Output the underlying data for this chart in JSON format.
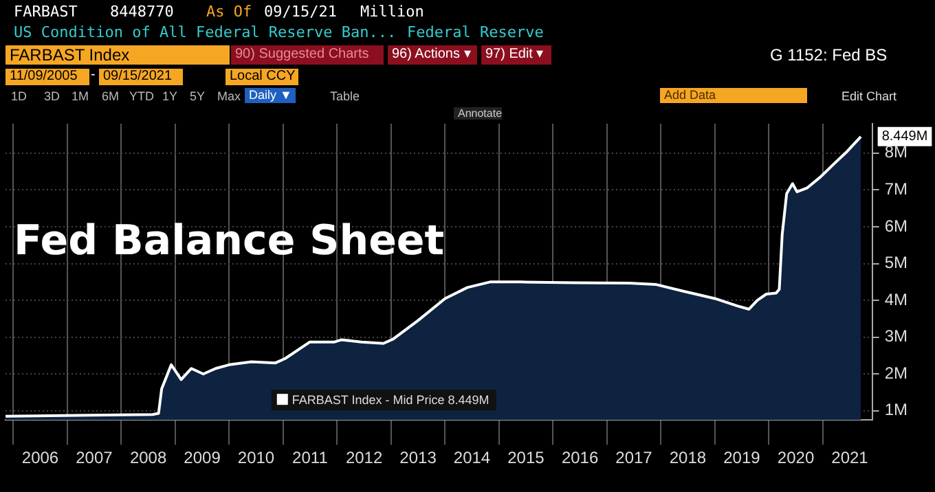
{
  "chart_data": {
    "type": "area",
    "title": "Fed Balance Sheet",
    "annotations": [
      "FARBAST",
      "8448770",
      "As Of",
      "09/15/21",
      "Million",
      "US Condition of All Federal Reserve Ban...",
      "Federal Reserve",
      "FARBAST Index",
      "90) Suggested Charts",
      "96) Actions ▾",
      "97) Edit ▾",
      "G 1152: Fed BS",
      "11/09/2005",
      "-",
      "09/15/2021",
      "Local CCY",
      "1D",
      "3D",
      "1M",
      "6M",
      "YTD",
      "1Y",
      "5Y",
      "Max",
      "Daily ▼",
      "Table",
      "Add Data",
      "Edit Chart",
      "Annotate"
    ],
    "x": [
      "2005-11-09",
      "2006-06-01",
      "2007-06-01",
      "2008-08-01",
      "2008-09-10",
      "2008-10-01",
      "2008-12-05",
      "2009-02-10",
      "2009-04-20",
      "2009-07-10",
      "2009-10-01",
      "2010-01-01",
      "2010-06-01",
      "2010-11-10",
      "2011-01-15",
      "2011-07-01",
      "2011-12-15",
      "2012-02-01",
      "2012-06-15",
      "2012-11-10",
      "2013-01-15",
      "2013-07-01",
      "2014-01-01",
      "2014-06-01",
      "2014-11-01",
      "2015-06-01",
      "2016-06-01",
      "2017-06-01",
      "2017-12-01",
      "2018-06-01",
      "2019-01-01",
      "2019-06-01",
      "2019-08-20",
      "2019-10-15",
      "2019-12-15",
      "2020-02-20",
      "2020-03-12",
      "2020-04-01",
      "2020-05-01",
      "2020-06-10",
      "2020-07-10",
      "2020-09-15",
      "2020-12-15",
      "2021-03-15",
      "2021-06-15",
      "2021-09-15"
    ],
    "series": [
      {
        "name": "FARBAST Index - Mid Price 8.449M",
        "color": "#ffffff",
        "values": [
          0.85,
          0.86,
          0.88,
          0.9,
          0.93,
          1.6,
          2.25,
          1.85,
          2.15,
          2.0,
          2.15,
          2.25,
          2.33,
          2.3,
          2.42,
          2.87,
          2.87,
          2.93,
          2.87,
          2.83,
          2.95,
          3.45,
          4.05,
          4.35,
          4.5,
          4.5,
          4.48,
          4.47,
          4.43,
          4.25,
          4.05,
          3.85,
          3.76,
          4.0,
          4.17,
          4.2,
          4.3,
          5.8,
          6.9,
          7.17,
          6.95,
          7.05,
          7.35,
          7.7,
          8.05,
          8.449
        ],
        "value_labels": [
          null,
          null,
          null,
          null,
          null,
          null,
          null,
          null,
          null,
          null,
          null,
          null,
          null,
          null,
          null,
          null,
          null,
          null,
          null,
          null,
          null,
          null,
          null,
          null,
          null,
          null,
          null,
          null,
          null,
          null,
          null,
          null,
          null,
          null,
          null,
          null,
          null,
          null,
          null,
          null,
          null,
          null,
          null,
          null,
          null,
          "8.449M"
        ]
      }
    ],
    "xlim": [
      "2005-11-09",
      "2021-12-01"
    ],
    "xticks": [
      {
        "value": "2006-01-01",
        "label": null
      },
      {
        "value": "2006-07-02",
        "label": "2006"
      },
      {
        "value": "2007-01-01",
        "label": null
      },
      {
        "value": "2007-07-02",
        "label": "2007"
      },
      {
        "value": "2008-01-01",
        "label": null
      },
      {
        "value": "2008-07-02",
        "label": "2008"
      },
      {
        "value": "2009-01-01",
        "label": null
      },
      {
        "value": "2009-07-02",
        "label": "2009"
      },
      {
        "value": "2010-01-01",
        "label": null
      },
      {
        "value": "2010-07-02",
        "label": "2010"
      },
      {
        "value": "2011-01-01",
        "label": null
      },
      {
        "value": "2011-07-02",
        "label": "2011"
      },
      {
        "value": "2012-01-01",
        "label": null
      },
      {
        "value": "2012-07-02",
        "label": "2012"
      },
      {
        "value": "2013-01-01",
        "label": null
      },
      {
        "value": "2013-07-02",
        "label": "2013"
      },
      {
        "value": "2014-01-01",
        "label": null
      },
      {
        "value": "2014-07-02",
        "label": "2014"
      },
      {
        "value": "2015-01-01",
        "label": null
      },
      {
        "value": "2015-07-02",
        "label": "2015"
      },
      {
        "value": "2016-01-01",
        "label": null
      },
      {
        "value": "2016-07-02",
        "label": "2016"
      },
      {
        "value": "2017-01-01",
        "label": null
      },
      {
        "value": "2017-07-02",
        "label": "2017"
      },
      {
        "value": "2018-01-01",
        "label": null
      },
      {
        "value": "2018-07-02",
        "label": "2018"
      },
      {
        "value": "2019-01-01",
        "label": null
      },
      {
        "value": "2019-07-02",
        "label": "2019"
      },
      {
        "value": "2020-01-01",
        "label": null
      },
      {
        "value": "2020-07-02",
        "label": "2020"
      },
      {
        "value": "2021-01-01",
        "label": null
      },
      {
        "value": "2021-07-02",
        "label": "2021"
      }
    ],
    "ylim": [
      0.75,
      8.8
    ],
    "yticks": [
      {
        "value": 1,
        "label": "1M"
      },
      {
        "value": 2,
        "label": "2M"
      },
      {
        "value": 3,
        "label": "3M"
      },
      {
        "value": 4,
        "label": "4M"
      },
      {
        "value": 5,
        "label": "5M"
      },
      {
        "value": 6,
        "label": "6M"
      },
      {
        "value": 7,
        "label": "7M"
      },
      {
        "value": 8,
        "label": "8M"
      }
    ],
    "grid": true,
    "legend": "bottom"
  }
}
